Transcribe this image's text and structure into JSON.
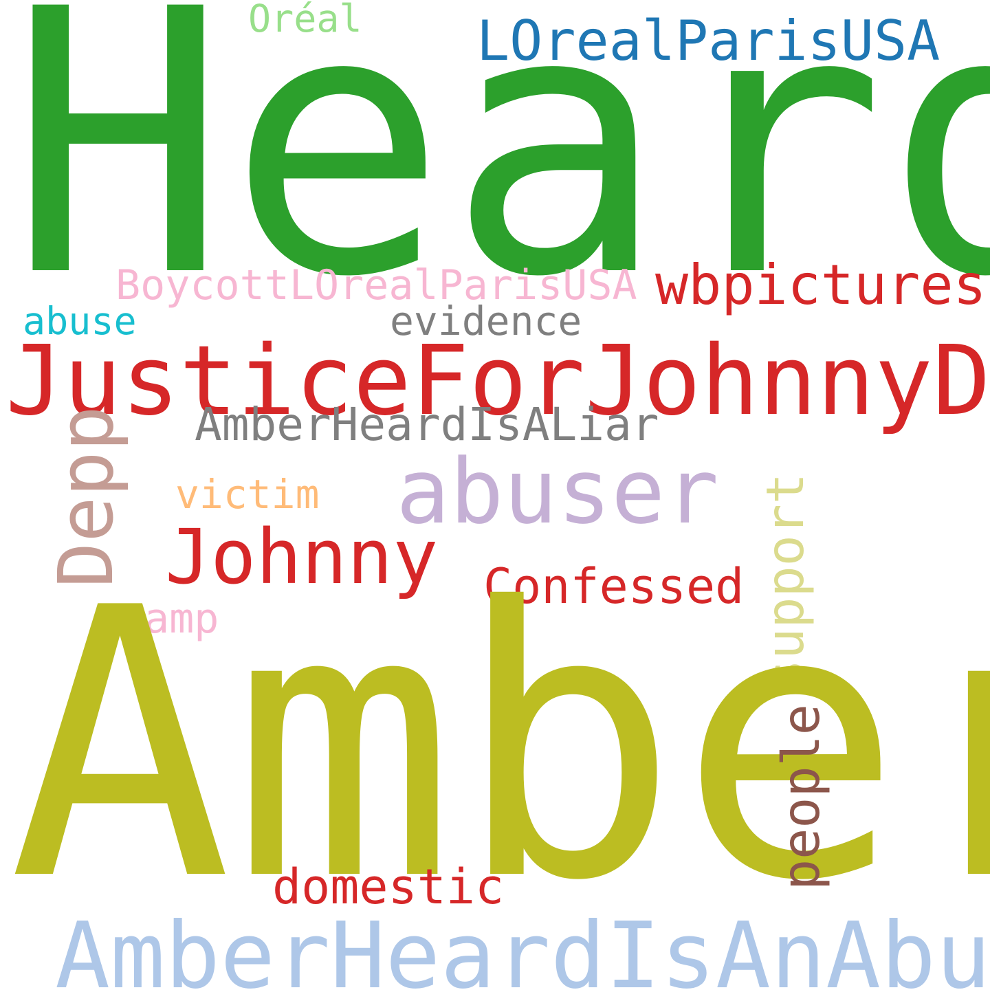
{
  "words": {
    "heard": {
      "text": "Heard",
      "color": "#2ca02c"
    },
    "amber": {
      "text": "Amber",
      "color": "#bcbd22"
    },
    "justice_for_johnny_depp": {
      "text": "JusticeForJohnnyDepp",
      "color": "#d62728"
    },
    "amber_heard_is_an_abuser": {
      "text": "AmberHeardIsAnAbuser",
      "color": "#aec7e8"
    },
    "abuser": {
      "text": "abuser",
      "color": "#c5b0d5"
    },
    "johnny": {
      "text": "Johnny",
      "color": "#d62728"
    },
    "depp": {
      "text": "Depp",
      "color": "#c49c94"
    },
    "wbpictures": {
      "text": "wbpictures",
      "color": "#d62728"
    },
    "loreal_paris_usa": {
      "text": "LOrealParisUSA",
      "color": "#1f77b4"
    },
    "confessed": {
      "text": "Confessed",
      "color": "#d62728"
    },
    "domestic": {
      "text": "domestic",
      "color": "#d62728"
    },
    "amber_heard_is_a_liar": {
      "text": "AmberHeardIsALiar",
      "color": "#7f7f7f"
    },
    "boycott_loreal_paris_usa": {
      "text": "BoycottLOrealParisUSA",
      "color": "#f7b6d2"
    },
    "victim": {
      "text": "victim",
      "color": "#ffbb78"
    },
    "evidence": {
      "text": "evidence",
      "color": "#7f7f7f"
    },
    "amp": {
      "text": "amp",
      "color": "#f7b6d2"
    },
    "abuse": {
      "text": "abuse",
      "color": "#17becf"
    },
    "oreal": {
      "text": "Oréal",
      "color": "#98df8a"
    },
    "support": {
      "text": "support",
      "color": "#dbdb8d"
    },
    "people": {
      "text": "people",
      "color": "#8c564b"
    }
  }
}
